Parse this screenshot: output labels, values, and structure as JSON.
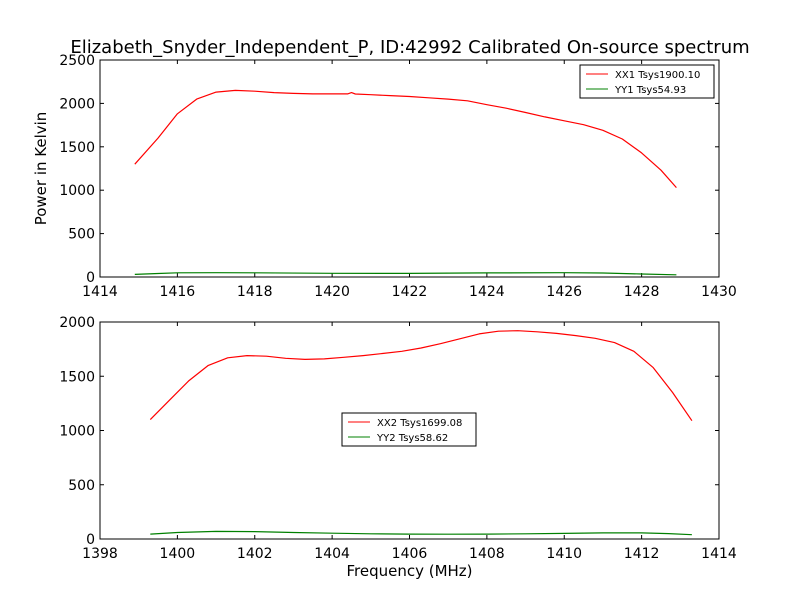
{
  "figure": {
    "title": "Elizabeth_Snyder_Independent_P, ID:42992 Calibrated On-source spectrum"
  },
  "chart_data": [
    {
      "type": "line",
      "ylabel": "Power in Kelvin",
      "xlabel": "",
      "xlim": [
        1414,
        1430
      ],
      "ylim": [
        0,
        2500
      ],
      "xticks": [
        "1414",
        "1416",
        "1418",
        "1420",
        "1422",
        "1424",
        "1426",
        "1428",
        "1430"
      ],
      "yticks": [
        "0",
        "500",
        "1000",
        "1500",
        "2000",
        "2500"
      ],
      "legend_position": "top-right",
      "series": [
        {
          "name": "XX1 Tsys1900.10",
          "color": "#ff0000",
          "points": [
            [
              1414.9,
              1300
            ],
            [
              1415.5,
              1600
            ],
            [
              1416.0,
              1880
            ],
            [
              1416.5,
              2050
            ],
            [
              1417.0,
              2130
            ],
            [
              1417.5,
              2150
            ],
            [
              1418.0,
              2140
            ],
            [
              1418.5,
              2125
            ],
            [
              1419.0,
              2115
            ],
            [
              1419.5,
              2110
            ],
            [
              1420.0,
              2110
            ],
            [
              1420.4,
              2110
            ],
            [
              1420.5,
              2125
            ],
            [
              1420.6,
              2108
            ],
            [
              1421.0,
              2100
            ],
            [
              1421.5,
              2090
            ],
            [
              1422.0,
              2080
            ],
            [
              1422.5,
              2065
            ],
            [
              1423.0,
              2050
            ],
            [
              1423.5,
              2030
            ],
            [
              1424.0,
              1985
            ],
            [
              1424.5,
              1945
            ],
            [
              1425.0,
              1895
            ],
            [
              1425.5,
              1845
            ],
            [
              1426.0,
              1800
            ],
            [
              1426.5,
              1755
            ],
            [
              1427.0,
              1690
            ],
            [
              1427.5,
              1590
            ],
            [
              1428.0,
              1430
            ],
            [
              1428.5,
              1230
            ],
            [
              1428.9,
              1030
            ]
          ]
        },
        {
          "name": "YY1 Tsys54.93",
          "color": "#008000",
          "points": [
            [
              1414.9,
              30
            ],
            [
              1415.5,
              40
            ],
            [
              1416.0,
              48
            ],
            [
              1417.0,
              50
            ],
            [
              1418.0,
              48
            ],
            [
              1420.0,
              43
            ],
            [
              1422.0,
              42
            ],
            [
              1424.0,
              47
            ],
            [
              1426.0,
              50
            ],
            [
              1427.0,
              46
            ],
            [
              1428.0,
              35
            ],
            [
              1428.9,
              25
            ]
          ]
        }
      ]
    },
    {
      "type": "line",
      "xlabel": "Frequency (MHz)",
      "ylabel": "",
      "xlim": [
        1398,
        1414
      ],
      "ylim": [
        0,
        2000
      ],
      "xticks": [
        "1398",
        "1400",
        "1402",
        "1404",
        "1406",
        "1408",
        "1410",
        "1412",
        "1414"
      ],
      "yticks": [
        "0",
        "500",
        "1000",
        "1500",
        "2000"
      ],
      "legend_position": "center",
      "series": [
        {
          "name": "XX2 Tsys1699.08",
          "color": "#ff0000",
          "points": [
            [
              1399.3,
              1100
            ],
            [
              1399.8,
              1280
            ],
            [
              1400.3,
              1460
            ],
            [
              1400.8,
              1600
            ],
            [
              1401.3,
              1670
            ],
            [
              1401.8,
              1690
            ],
            [
              1402.3,
              1685
            ],
            [
              1402.8,
              1665
            ],
            [
              1403.3,
              1655
            ],
            [
              1403.8,
              1660
            ],
            [
              1404.3,
              1675
            ],
            [
              1404.8,
              1690
            ],
            [
              1405.3,
              1710
            ],
            [
              1405.8,
              1730
            ],
            [
              1406.3,
              1760
            ],
            [
              1406.8,
              1800
            ],
            [
              1407.3,
              1845
            ],
            [
              1407.8,
              1890
            ],
            [
              1408.3,
              1915
            ],
            [
              1408.8,
              1920
            ],
            [
              1409.3,
              1910
            ],
            [
              1409.8,
              1895
            ],
            [
              1410.3,
              1875
            ],
            [
              1410.8,
              1850
            ],
            [
              1411.3,
              1810
            ],
            [
              1411.8,
              1730
            ],
            [
              1412.3,
              1580
            ],
            [
              1412.8,
              1350
            ],
            [
              1413.3,
              1090
            ]
          ]
        },
        {
          "name": "YY2 Tsys58.62",
          "color": "#008000",
          "points": [
            [
              1399.3,
              45
            ],
            [
              1400.0,
              60
            ],
            [
              1401.0,
              70
            ],
            [
              1402.0,
              68
            ],
            [
              1403.0,
              60
            ],
            [
              1404.0,
              53
            ],
            [
              1405.0,
              48
            ],
            [
              1406.0,
              45
            ],
            [
              1407.0,
              44
            ],
            [
              1408.0,
              45
            ],
            [
              1409.0,
              48
            ],
            [
              1410.0,
              52
            ],
            [
              1411.0,
              56
            ],
            [
              1412.0,
              56
            ],
            [
              1412.7,
              50
            ],
            [
              1413.3,
              40
            ]
          ]
        }
      ]
    }
  ]
}
